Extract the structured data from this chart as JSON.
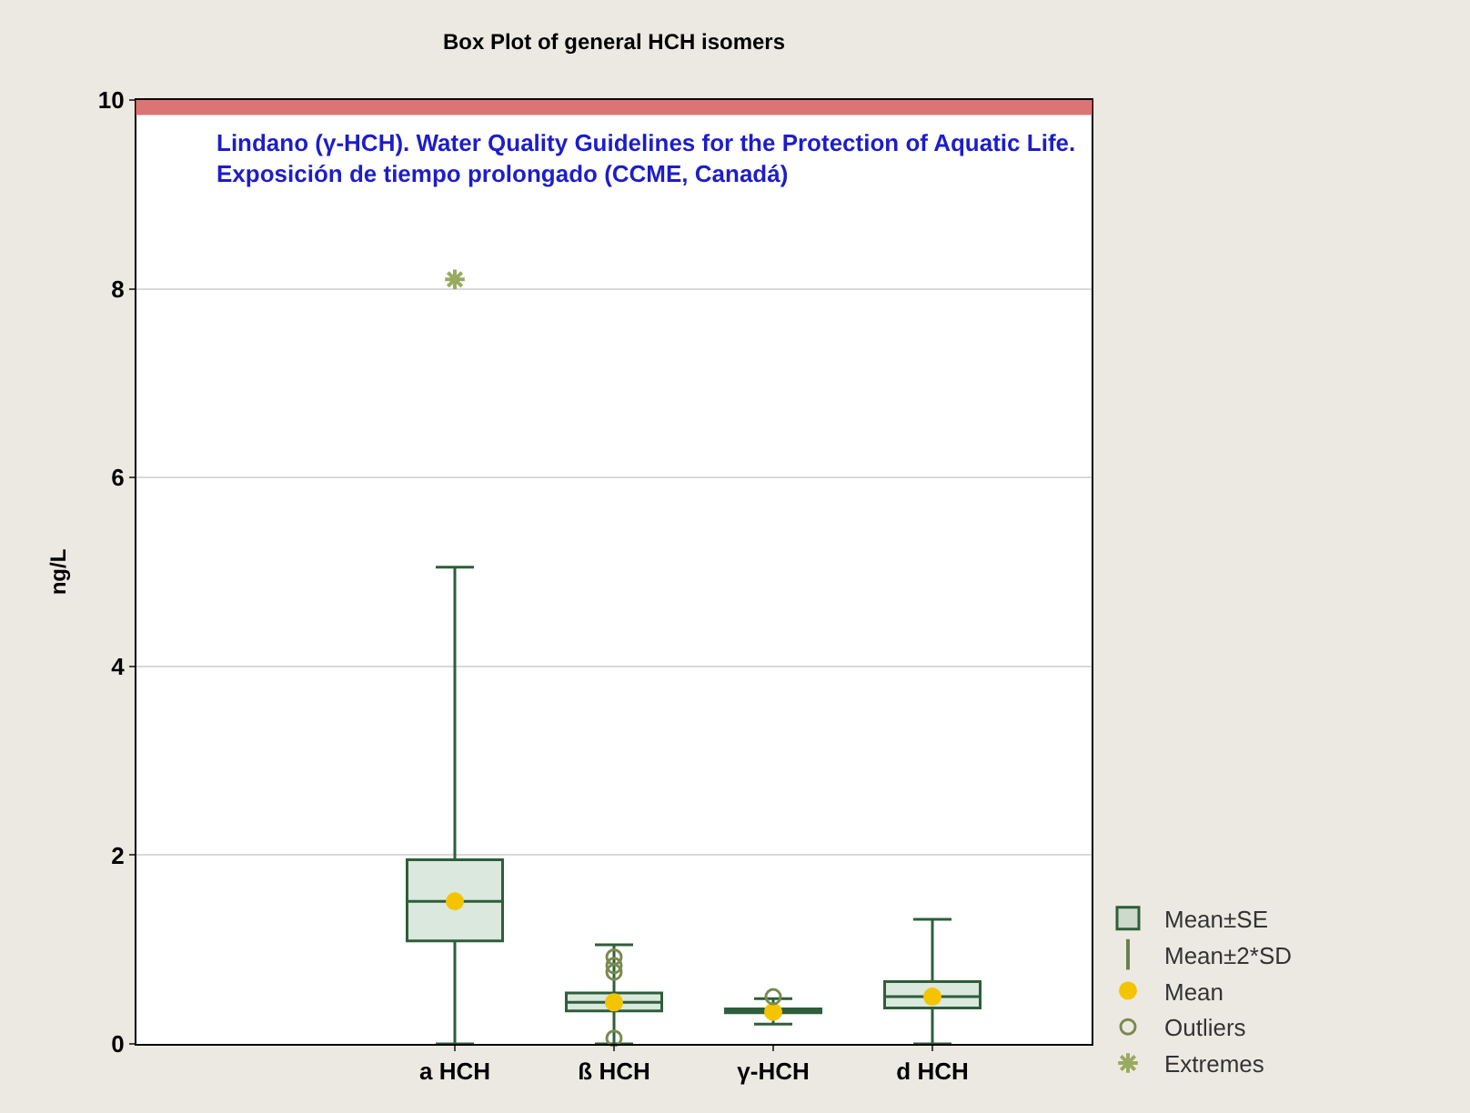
{
  "chart_data": {
    "type": "box",
    "title": "Box Plot of general HCH isomers",
    "ylabel": "ng/L",
    "categories": [
      null,
      null,
      "a HCH",
      "ß HCH",
      "γ-HCH",
      "d HCH",
      null
    ],
    "ylim": [
      0,
      10
    ],
    "yticks": [
      0,
      2,
      4,
      6,
      8,
      10
    ],
    "grid": "y",
    "legend": "bottom right",
    "bands": [
      {
        "axis": "y",
        "from": 9.85,
        "to": 10,
        "color": "#d04848",
        "label": "Lindano (γ-HCH). Water Quality Guidelines for the Protection of Aquatic Life.\nExposición de tiempo prolongado (CCME, Canadá)"
      }
    ],
    "series": [
      {
        "name": "Mean±2*SD",
        "type": "scatter",
        "color": "#6e7f4a",
        "values": [
          null,
          null,
          null,
          null,
          null,
          null,
          null
        ]
      },
      {
        "name": "Mean±SE",
        "color": "#2e5e3a",
        "boxes": [
          null,
          null,
          {
            "low": 0,
            "q1": 1.09,
            "median": 1.51,
            "q3": 1.95,
            "high": 5.05
          },
          {
            "low": 0,
            "q1": 0.35,
            "median": 0.44,
            "q3": 0.54,
            "high": 1.05
          },
          {
            "low": 0.21,
            "q1": 0.33,
            "median": 0.34,
            "q3": 0.37,
            "high": 0.48
          },
          {
            "low": 0,
            "q1": 0.38,
            "median": 0.5,
            "q3": 0.66,
            "high": 1.32
          },
          null
        ]
      },
      {
        "name": "Mean",
        "type": "scatter",
        "marker": "circle",
        "color": "#f5c400",
        "x": [
          "a HCH",
          "ß HCH",
          "γ-HCH",
          "d HCH"
        ],
        "values": [
          1.51,
          0.44,
          0.34,
          0.5
        ]
      },
      {
        "name": "Outliers",
        "type": "scatter",
        "marker": "circle",
        "color": "#7a8a50",
        "x": [
          "ß HCH",
          "ß HCH",
          "ß HCH",
          "ß HCH",
          "γ-HCH"
        ],
        "values": [
          0.92,
          0.83,
          0.76,
          0.06,
          0.5
        ]
      },
      {
        "name": "Extremes",
        "type": "scatter",
        "marker": "cross",
        "color": "#9aaa60",
        "x": [
          "a HCH"
        ],
        "values": [
          8.1
        ]
      }
    ]
  }
}
